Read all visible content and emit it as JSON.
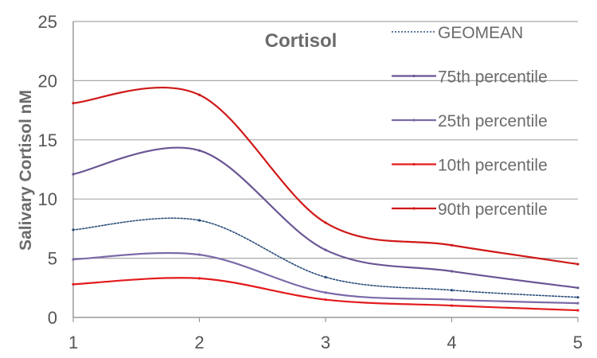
{
  "chart_data": {
    "type": "line",
    "title": "Cortisol",
    "xlabel": "",
    "ylabel": "Salivary Cortisol nM",
    "x": [
      1,
      2,
      3,
      4,
      5
    ],
    "x_ticks": [
      "1",
      "2",
      "3",
      "4",
      "5"
    ],
    "y_ticks": [
      "0",
      "5",
      "10",
      "15",
      "20",
      "25"
    ],
    "xlim": [
      1,
      5
    ],
    "ylim": [
      0,
      25
    ],
    "grid": "horizontal",
    "legend_position": "top-right",
    "smooth": true,
    "series": [
      {
        "name": "GEOMEAN",
        "values": [
          7.4,
          8.2,
          3.4,
          2.3,
          1.7
        ],
        "color": "#2a4d7a",
        "style": "dotted"
      },
      {
        "name": "75th percentile",
        "values": [
          12.1,
          14.1,
          5.7,
          3.9,
          2.5
        ],
        "color": "#6a5594",
        "style": "solid"
      },
      {
        "name": "25th percentile",
        "values": [
          4.9,
          5.3,
          2.1,
          1.5,
          1.2
        ],
        "color": "#7b6aa8",
        "style": "solid"
      },
      {
        "name": "10th percentile",
        "values": [
          2.8,
          3.3,
          1.5,
          1.0,
          0.6
        ],
        "color": "#e31a1c",
        "style": "solid"
      },
      {
        "name": "90th percentile",
        "values": [
          18.1,
          18.8,
          8.0,
          6.1,
          4.5
        ],
        "color": "#d01818",
        "style": "solid"
      }
    ],
    "colors": {
      "axis": "#999999",
      "grid": "#a8a8a8",
      "text": "#555555"
    }
  }
}
